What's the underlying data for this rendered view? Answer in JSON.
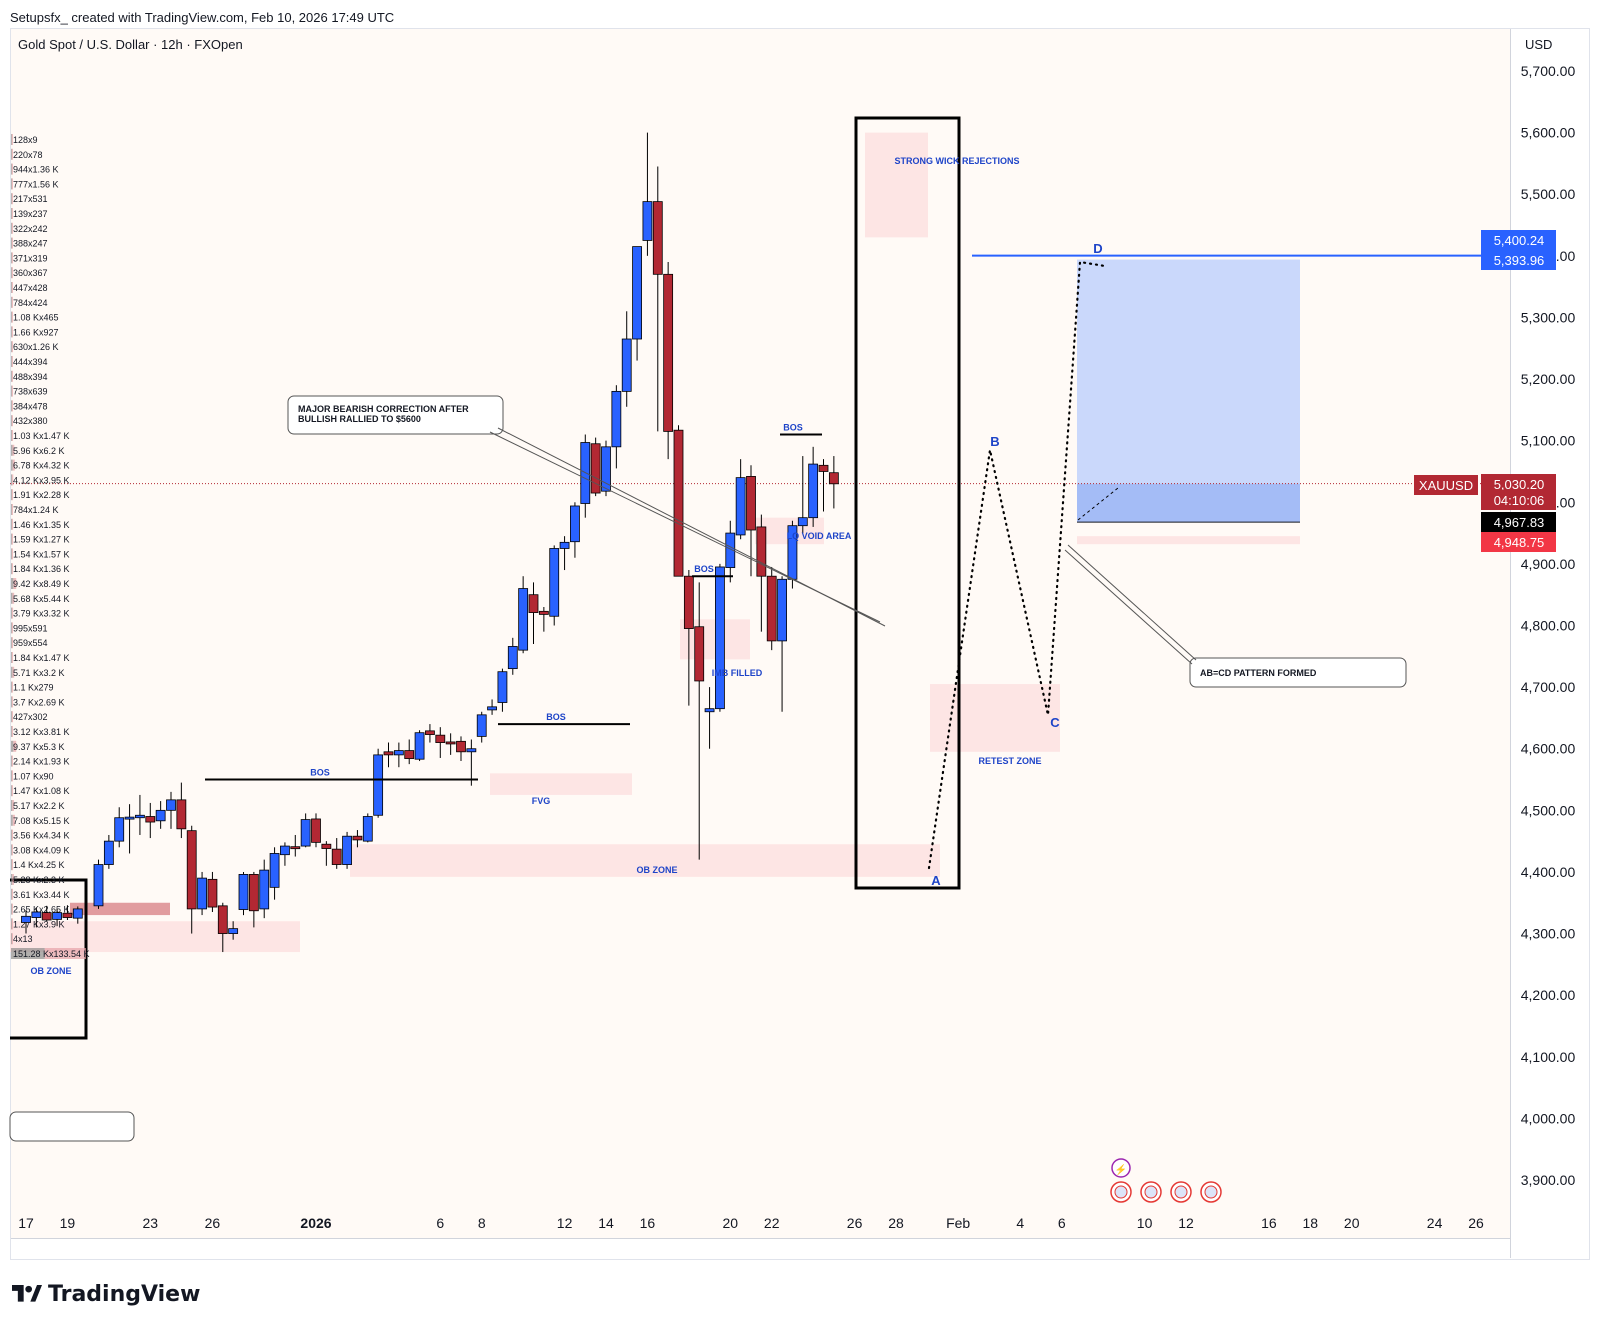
{
  "header": {
    "attribution": "Setupsfx_ created with TradingView.com, Feb 10, 2026 17:49 UTC"
  },
  "symbol_info": "Gold Spot / U.S. Dollar · 12h · FXOpen",
  "currency": "USD",
  "brand": "TradingView",
  "colors": {
    "bull": "#2962ff",
    "bear": "#b22833",
    "zone": "#fde2e2",
    "target": "#c7d6fb",
    "blue_line": "#2962ff",
    "annotation": "#1e44c8"
  },
  "chart_data": {
    "type": "candlestick",
    "symbol": "XAUUSD",
    "timeframe": "12h",
    "ylim": [
      3850,
      5760
    ],
    "y_ticks": [
      3900,
      4000,
      4100,
      4200,
      4300,
      4400,
      4500,
      4600,
      4700,
      4800,
      4900,
      5000,
      5100,
      5200,
      5300,
      5400,
      5500,
      5600,
      5700
    ],
    "y_tick_labels": [
      "3,900.00",
      "4,000.00",
      "4,100.00",
      "4,200.00",
      "4,300.00",
      "4,400.00",
      "4,500.00",
      "4,600.00",
      "4,700.00",
      "4,800.00",
      "4,900.00",
      "5,000.00",
      "5,100.00",
      "5,200.00",
      "5,300.00",
      "5,400.00",
      "5,500.00",
      "5,600.00",
      "5,700.00"
    ],
    "x_ticks": [
      {
        "label": "17",
        "day": 17
      },
      {
        "label": "19",
        "day": 19
      },
      {
        "label": "23",
        "day": 23
      },
      {
        "label": "26",
        "day": 26
      },
      {
        "label": "2026",
        "day": 31
      },
      {
        "label": "6",
        "day": 37
      },
      {
        "label": "8",
        "day": 39
      },
      {
        "label": "12",
        "day": 43
      },
      {
        "label": "14",
        "day": 45
      },
      {
        "label": "16",
        "day": 47
      },
      {
        "label": "20",
        "day": 51
      },
      {
        "label": "22",
        "day": 53
      },
      {
        "label": "26",
        "day": 57
      },
      {
        "label": "28",
        "day": 59
      },
      {
        "label": "Feb",
        "day": 62
      },
      {
        "label": "4",
        "day": 65
      },
      {
        "label": "6",
        "day": 67
      },
      {
        "label": "10",
        "day": 71
      },
      {
        "label": "12",
        "day": 73
      },
      {
        "label": "16",
        "day": 77
      },
      {
        "label": "18",
        "day": 79
      },
      {
        "label": "20",
        "day": 81
      },
      {
        "label": "24",
        "day": 85
      },
      {
        "label": "26",
        "day": 87
      }
    ],
    "candles": [
      {
        "d": 17.0,
        "o": 4318,
        "h": 4338,
        "l": 4300,
        "c": 4328
      },
      {
        "d": 17.5,
        "o": 4326,
        "h": 4342,
        "l": 4310,
        "c": 4335
      },
      {
        "d": 18.0,
        "o": 4334,
        "h": 4345,
        "l": 4320,
        "c": 4322
      },
      {
        "d": 18.5,
        "o": 4323,
        "h": 4340,
        "l": 4312,
        "c": 4334
      },
      {
        "d": 19.0,
        "o": 4333,
        "h": 4346,
        "l": 4322,
        "c": 4326
      },
      {
        "d": 19.5,
        "o": 4325,
        "h": 4344,
        "l": 4316,
        "c": 4340
      },
      {
        "d": 20.5,
        "o": 4345,
        "h": 4420,
        "l": 4340,
        "c": 4412
      },
      {
        "d": 21.0,
        "o": 4412,
        "h": 4460,
        "l": 4405,
        "c": 4450
      },
      {
        "d": 21.5,
        "o": 4450,
        "h": 4505,
        "l": 4440,
        "c": 4488
      },
      {
        "d": 22.0,
        "o": 4487,
        "h": 4510,
        "l": 4430,
        "c": 4489
      },
      {
        "d": 22.5,
        "o": 4488,
        "h": 4525,
        "l": 4460,
        "c": 4492
      },
      {
        "d": 23.0,
        "o": 4490,
        "h": 4512,
        "l": 4455,
        "c": 4481
      },
      {
        "d": 23.5,
        "o": 4483,
        "h": 4515,
        "l": 4470,
        "c": 4500
      },
      {
        "d": 24.0,
        "o": 4500,
        "h": 4530,
        "l": 4470,
        "c": 4517
      },
      {
        "d": 24.5,
        "o": 4517,
        "h": 4545,
        "l": 4455,
        "c": 4470
      },
      {
        "d": 25.0,
        "o": 4467,
        "h": 4475,
        "l": 4300,
        "c": 4340
      },
      {
        "d": 25.5,
        "o": 4340,
        "h": 4400,
        "l": 4330,
        "c": 4390
      },
      {
        "d": 26.0,
        "o": 4388,
        "h": 4400,
        "l": 4335,
        "c": 4343
      },
      {
        "d": 26.5,
        "o": 4345,
        "h": 4350,
        "l": 4270,
        "c": 4300
      },
      {
        "d": 27.0,
        "o": 4300,
        "h": 4320,
        "l": 4290,
        "c": 4308
      },
      {
        "d": 27.5,
        "o": 4339,
        "h": 4400,
        "l": 4330,
        "c": 4396
      },
      {
        "d": 28.0,
        "o": 4396,
        "h": 4400,
        "l": 4310,
        "c": 4337
      },
      {
        "d": 28.5,
        "o": 4340,
        "h": 4420,
        "l": 4325,
        "c": 4403
      },
      {
        "d": 29.0,
        "o": 4375,
        "h": 4440,
        "l": 4355,
        "c": 4430
      },
      {
        "d": 29.5,
        "o": 4428,
        "h": 4448,
        "l": 4410,
        "c": 4442
      },
      {
        "d": 30.0,
        "o": 4441,
        "h": 4460,
        "l": 4425,
        "c": 4438
      },
      {
        "d": 30.5,
        "o": 4442,
        "h": 4495,
        "l": 4440,
        "c": 4485
      },
      {
        "d": 31.0,
        "o": 4486,
        "h": 4495,
        "l": 4440,
        "c": 4448
      },
      {
        "d": 31.5,
        "o": 4445,
        "h": 4450,
        "l": 4410,
        "c": 4438
      },
      {
        "d": 32.0,
        "o": 4437,
        "h": 4455,
        "l": 4405,
        "c": 4412
      },
      {
        "d": 32.5,
        "o": 4412,
        "h": 4465,
        "l": 4405,
        "c": 4458
      },
      {
        "d": 33.0,
        "o": 4458,
        "h": 4468,
        "l": 4440,
        "c": 4452
      },
      {
        "d": 33.5,
        "o": 4450,
        "h": 4495,
        "l": 4448,
        "c": 4490
      },
      {
        "d": 34.0,
        "o": 4492,
        "h": 4600,
        "l": 4488,
        "c": 4590
      },
      {
        "d": 34.5,
        "o": 4595,
        "h": 4610,
        "l": 4570,
        "c": 4590
      },
      {
        "d": 35.0,
        "o": 4590,
        "h": 4610,
        "l": 4570,
        "c": 4597
      },
      {
        "d": 35.5,
        "o": 4597,
        "h": 4615,
        "l": 4575,
        "c": 4584
      },
      {
        "d": 36.0,
        "o": 4583,
        "h": 4630,
        "l": 4580,
        "c": 4626
      },
      {
        "d": 36.5,
        "o": 4629,
        "h": 4640,
        "l": 4610,
        "c": 4623
      },
      {
        "d": 37.0,
        "o": 4622,
        "h": 4635,
        "l": 4585,
        "c": 4610
      },
      {
        "d": 37.5,
        "o": 4611,
        "h": 4625,
        "l": 4590,
        "c": 4609
      },
      {
        "d": 38.0,
        "o": 4612,
        "h": 4620,
        "l": 4580,
        "c": 4595
      },
      {
        "d": 38.5,
        "o": 4595,
        "h": 4615,
        "l": 4540,
        "c": 4600
      },
      {
        "d": 39.0,
        "o": 4620,
        "h": 4660,
        "l": 4610,
        "c": 4655
      },
      {
        "d": 39.5,
        "o": 4663,
        "h": 4680,
        "l": 4655,
        "c": 4668
      },
      {
        "d": 40.0,
        "o": 4675,
        "h": 4730,
        "l": 4660,
        "c": 4725
      },
      {
        "d": 40.5,
        "o": 4730,
        "h": 4780,
        "l": 4720,
        "c": 4766
      },
      {
        "d": 41.0,
        "o": 4760,
        "h": 4880,
        "l": 4755,
        "c": 4860
      },
      {
        "d": 41.5,
        "o": 4850,
        "h": 4870,
        "l": 4770,
        "c": 4821
      },
      {
        "d": 42.0,
        "o": 4823,
        "h": 4830,
        "l": 4790,
        "c": 4818
      },
      {
        "d": 42.5,
        "o": 4815,
        "h": 4930,
        "l": 4800,
        "c": 4925
      },
      {
        "d": 43.0,
        "o": 4925,
        "h": 4945,
        "l": 4890,
        "c": 4935
      },
      {
        "d": 43.5,
        "o": 4936,
        "h": 5000,
        "l": 4910,
        "c": 4994
      },
      {
        "d": 44.0,
        "o": 4998,
        "h": 5110,
        "l": 4975,
        "c": 5097
      },
      {
        "d": 44.5,
        "o": 5095,
        "h": 5105,
        "l": 5010,
        "c": 5015
      },
      {
        "d": 45.0,
        "o": 5018,
        "h": 5100,
        "l": 5010,
        "c": 5090
      },
      {
        "d": 45.5,
        "o": 5090,
        "h": 5190,
        "l": 5055,
        "c": 5180
      },
      {
        "d": 46.0,
        "o": 5180,
        "h": 5310,
        "l": 5155,
        "c": 5265
      },
      {
        "d": 46.5,
        "o": 5265,
        "h": 5410,
        "l": 5230,
        "c": 5415
      },
      {
        "d": 47.0,
        "o": 5425,
        "h": 5600,
        "l": 5400,
        "c": 5488
      },
      {
        "d": 47.5,
        "o": 5488,
        "h": 5545,
        "l": 5115,
        "c": 5370
      },
      {
        "d": 48.0,
        "o": 5370,
        "h": 5390,
        "l": 5070,
        "c": 5115
      },
      {
        "d": 48.5,
        "o": 5117,
        "h": 5125,
        "l": 4880,
        "c": 4880
      },
      {
        "d": 49.0,
        "o": 4880,
        "h": 4890,
        "l": 4670,
        "c": 4795
      },
      {
        "d": 49.5,
        "o": 4798,
        "h": 4870,
        "l": 4420,
        "c": 4710
      },
      {
        "d": 50.0,
        "o": 4660,
        "h": 4700,
        "l": 4600,
        "c": 4665
      },
      {
        "d": 50.5,
        "o": 4665,
        "h": 4900,
        "l": 4660,
        "c": 4895
      },
      {
        "d": 51.0,
        "o": 4894,
        "h": 4970,
        "l": 4870,
        "c": 4950
      },
      {
        "d": 51.5,
        "o": 4947,
        "h": 5070,
        "l": 4940,
        "c": 5040
      },
      {
        "d": 52.0,
        "o": 5042,
        "h": 5060,
        "l": 4880,
        "c": 4955
      },
      {
        "d": 52.5,
        "o": 4960,
        "h": 4980,
        "l": 4790,
        "c": 4880
      },
      {
        "d": 53.0,
        "o": 4880,
        "h": 4895,
        "l": 4760,
        "c": 4775
      },
      {
        "d": 53.5,
        "o": 4775,
        "h": 4880,
        "l": 4660,
        "c": 4875
      },
      {
        "d": 54.0,
        "o": 4875,
        "h": 4970,
        "l": 4860,
        "c": 4962
      },
      {
        "d": 54.5,
        "o": 4962,
        "h": 5075,
        "l": 4950,
        "c": 4975
      },
      {
        "d": 55.0,
        "o": 4975,
        "h": 5090,
        "l": 4960,
        "c": 5062
      },
      {
        "d": 55.5,
        "o": 5060,
        "h": 5070,
        "l": 4985,
        "c": 5050
      },
      {
        "d": 56.0,
        "o": 5048,
        "h": 5075,
        "l": 4990,
        "c": 5030
      }
    ],
    "price_labels": [
      {
        "value": "5,400.24",
        "kind": "blue"
      },
      {
        "value": "5,393.96",
        "kind": "blue"
      },
      {
        "value": "5,030.20",
        "kind": "red"
      },
      {
        "value": "04:10:06",
        "kind": "red"
      },
      {
        "value": "4,967.83",
        "kind": "black"
      },
      {
        "value": "4,948.75",
        "kind": "pink"
      }
    ],
    "symbol_tag": "XAUUSD",
    "current_price": 5030.2,
    "target_zone": {
      "top": 5393.96,
      "mid": 5030.2,
      "bottom": 4967.83,
      "stop": 4948.75
    },
    "horizontal_line": 5400.24,
    "annotations": [
      {
        "text": "BOS",
        "kind": "bos"
      },
      {
        "text": "BOS",
        "kind": "bos"
      },
      {
        "text": "BOS",
        "kind": "bos"
      },
      {
        "text": "BOS",
        "kind": "bos"
      },
      {
        "text": "FVG",
        "kind": "zone-label"
      },
      {
        "text": "OB ZONE",
        "kind": "zone-label"
      },
      {
        "text": "OB ZONE",
        "kind": "zone-label"
      },
      {
        "text": "IMB FILLED",
        "kind": "zone-label"
      },
      {
        "text": "LQ VOID AREA",
        "kind": "zone-label"
      },
      {
        "text": "STRONG WICK REJECTIONS",
        "kind": "zone-label"
      },
      {
        "text": "RETEST ZONE",
        "kind": "zone-label"
      },
      {
        "text": "A",
        "kind": "point"
      },
      {
        "text": "B",
        "kind": "point"
      },
      {
        "text": "C",
        "kind": "point"
      },
      {
        "text": "D",
        "kind": "point"
      }
    ],
    "callouts": [
      {
        "text": "MAJOR BEARISH CORRECTION AFTER",
        "line2": "BULLISH RALLIED TO $5600"
      },
      {
        "text": "AB=CD PATTERN FORMED",
        "line2": ""
      }
    ],
    "volume_profile": [
      "128x9",
      "220x78",
      "944x1.36 K",
      "777x1.56 K",
      "217x531",
      "139x237",
      "322x242",
      "388x247",
      "371x319",
      "360x367",
      "447x428",
      "784x424",
      "1.08 Kx465",
      "1.66 Kx927",
      "630x1.26 K",
      "444x394",
      "488x394",
      "738x639",
      "384x478",
      "432x380",
      "1.03 Kx1.47 K",
      "5.96 Kx6.2 K",
      "6.78 Kx4.32 K",
      "4.12 Kx3.95 K",
      "1.91 Kx2.28 K",
      "784x1.24 K",
      "1.46 Kx1.35 K",
      "1.59 Kx1.27 K",
      "1.54 Kx1.57 K",
      "1.84 Kx1.36 K",
      "9.42 Kx8.49 K",
      "5.68 Kx5.44 K",
      "3.79 Kx3.32 K",
      "995x591",
      "959x554",
      "1.84 Kx1.47 K",
      "5.71 Kx3.2 K",
      "1.1 Kx279",
      "3.7 Kx2.69 K",
      "427x302",
      "3.12 Kx3.81 K",
      "9.37 Kx5.3 K",
      "2.14 Kx1.93 K",
      "1.07 Kx90",
      "1.47 Kx1.08 K",
      "5.17 Kx2.2 K",
      "7.08 Kx5.15 K",
      "3.56 Kx4.34 K",
      "3.08 Kx4.09 K",
      "1.4 Kx4.25 K",
      "5.28 Kx2.3 K",
      "3.61 Kx3.44 K",
      "2.65 Kx2.65 K",
      "1.27 Kx3.9 K",
      "4x13",
      "151.28 Kx133.54 K"
    ]
  }
}
